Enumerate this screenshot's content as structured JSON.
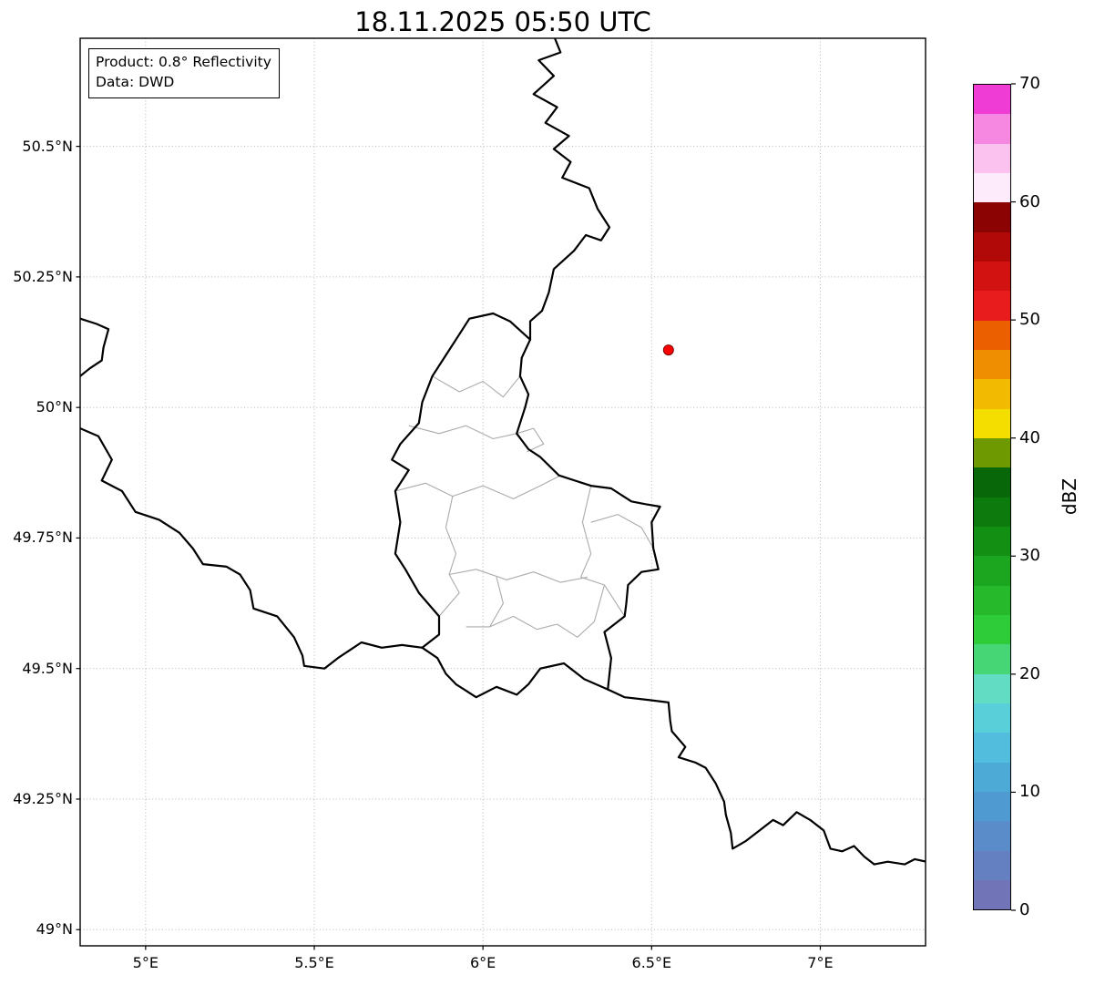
{
  "title": "18.11.2025 05:50 UTC",
  "info_box": {
    "line1": "Product: 0.8° Reflectivity",
    "line2": "Data: DWD"
  },
  "chart_data": {
    "type": "map",
    "title": "18.11.2025 05:50 UTC",
    "product": "0.8° Reflectivity",
    "data_source": "DWD",
    "grid": {
      "visible": true,
      "style": "dotted"
    },
    "x_axis": {
      "range": [
        4.806,
        7.312
      ],
      "ticks": [
        5,
        5.5,
        6,
        6.5,
        7
      ],
      "tick_labels": [
        "5°E",
        "5.5°E",
        "6°E",
        "6.5°E",
        "7°E"
      ]
    },
    "y_axis": {
      "range": [
        48.969,
        50.707
      ],
      "ticks": [
        49,
        49.25,
        49.5,
        49.75,
        50,
        50.25,
        50.5
      ],
      "tick_labels": [
        "49°N",
        "49.25°N",
        "49.5°N",
        "49.75°N",
        "50°N",
        "50.25°N",
        "50.5°N"
      ]
    },
    "colorbar": {
      "label": "dBZ",
      "range": [
        0,
        70
      ],
      "ticks": [
        0,
        10,
        20,
        30,
        40,
        50,
        60,
        70
      ],
      "tick_labels": [
        "0",
        "10",
        "20",
        "30",
        "40",
        "50",
        "60",
        "70"
      ],
      "segment_step": 2.5,
      "colors_bottom_to_top": [
        "#7274b8",
        "#6580c0",
        "#598cc8",
        "#4f9ad0",
        "#4daad7",
        "#52bddc",
        "#59d0d9",
        "#62dcc3",
        "#46d675",
        "#2fcc39",
        "#26b92b",
        "#1ca51f",
        "#139014",
        "#0c7a0d",
        "#086708",
        "#6f9900",
        "#f3de00",
        "#f2ba00",
        "#ef8e00",
        "#eb5f00",
        "#e81c1c",
        "#d21111",
        "#b10808",
        "#8b0303",
        "#fdeafa",
        "#fbc2f0",
        "#f788e2",
        "#ee3cd4"
      ]
    },
    "radar_marker": {
      "lon": 6.55,
      "lat": 50.11,
      "color": "#ff0000",
      "edge_color": "#7a0000"
    },
    "borders": {
      "country_color": "#000000",
      "district_color": "#ababab",
      "country": [
        [
          [
            6.205,
            50.72
          ],
          [
            6.23,
            50.68
          ],
          [
            6.165,
            50.665
          ],
          [
            6.21,
            50.635
          ],
          [
            6.15,
            50.6
          ],
          [
            6.22,
            50.575
          ],
          [
            6.185,
            50.545
          ],
          [
            6.255,
            50.52
          ],
          [
            6.21,
            50.495
          ],
          [
            6.26,
            50.47
          ],
          [
            6.235,
            50.44
          ],
          [
            6.315,
            50.42
          ],
          [
            6.34,
            50.38
          ],
          [
            6.375,
            50.345
          ],
          [
            6.35,
            50.32
          ],
          [
            6.305,
            50.33
          ],
          [
            6.27,
            50.3
          ],
          [
            6.21,
            50.265
          ],
          [
            6.195,
            50.22
          ],
          [
            6.175,
            50.185
          ],
          [
            6.14,
            50.165
          ],
          [
            6.14,
            50.13
          ]
        ],
        [
          [
            6.14,
            50.13
          ],
          [
            6.115,
            50.095
          ],
          [
            6.11,
            50.06
          ],
          [
            6.135,
            50.025
          ],
          [
            6.125,
            50.0
          ],
          [
            6.1,
            49.95
          ],
          [
            6.135,
            49.92
          ],
          [
            6.17,
            49.905
          ],
          [
            6.225,
            49.87
          ],
          [
            6.32,
            49.85
          ],
          [
            6.38,
            49.845
          ],
          [
            6.44,
            49.82
          ],
          [
            6.48,
            49.815
          ],
          [
            6.525,
            49.81
          ],
          [
            6.5,
            49.78
          ],
          [
            6.505,
            49.73
          ],
          [
            6.52,
            49.69
          ],
          [
            6.47,
            49.685
          ],
          [
            6.43,
            49.66
          ],
          [
            6.425,
            49.625
          ],
          [
            6.42,
            49.6
          ],
          [
            6.36,
            49.57
          ],
          [
            6.38,
            49.52
          ],
          [
            6.37,
            49.46
          ],
          [
            6.3,
            49.48
          ],
          [
            6.24,
            49.51
          ],
          [
            6.17,
            49.5
          ],
          [
            6.135,
            49.47
          ],
          [
            6.1,
            49.45
          ],
          [
            6.04,
            49.465
          ],
          [
            5.98,
            49.445
          ],
          [
            5.92,
            49.47
          ],
          [
            5.89,
            49.49
          ],
          [
            5.865,
            49.52
          ],
          [
            5.82,
            49.54
          ],
          [
            5.87,
            49.565
          ],
          [
            5.87,
            49.6
          ],
          [
            5.81,
            49.645
          ],
          [
            5.77,
            49.69
          ],
          [
            5.74,
            49.72
          ],
          [
            5.755,
            49.78
          ],
          [
            5.74,
            49.84
          ],
          [
            5.78,
            49.88
          ],
          [
            5.73,
            49.9
          ],
          [
            5.755,
            49.93
          ],
          [
            5.81,
            49.97
          ],
          [
            5.82,
            50.01
          ],
          [
            5.85,
            50.06
          ],
          [
            5.89,
            50.1
          ],
          [
            5.96,
            50.17
          ],
          [
            6.03,
            50.18
          ],
          [
            6.08,
            50.165
          ],
          [
            6.14,
            50.13
          ]
        ],
        [
          [
            4.806,
            49.96
          ],
          [
            4.86,
            49.945
          ],
          [
            4.9,
            49.9
          ],
          [
            4.87,
            49.86
          ],
          [
            4.93,
            49.84
          ],
          [
            4.97,
            49.8
          ],
          [
            5.04,
            49.785
          ],
          [
            5.1,
            49.76
          ],
          [
            5.14,
            49.73
          ],
          [
            5.17,
            49.7
          ],
          [
            5.24,
            49.695
          ],
          [
            5.28,
            49.68
          ],
          [
            5.31,
            49.65
          ],
          [
            5.32,
            49.615
          ],
          [
            5.39,
            49.6
          ],
          [
            5.44,
            49.56
          ],
          [
            5.465,
            49.525
          ],
          [
            5.47,
            49.505
          ],
          [
            5.53,
            49.5
          ],
          [
            5.57,
            49.52
          ],
          [
            5.64,
            49.55
          ],
          [
            5.7,
            49.54
          ],
          [
            5.76,
            49.545
          ],
          [
            5.82,
            49.54
          ]
        ],
        [
          [
            4.806,
            50.17
          ],
          [
            4.855,
            50.16
          ],
          [
            4.89,
            50.15
          ],
          [
            4.875,
            50.115
          ],
          [
            4.87,
            50.09
          ],
          [
            4.835,
            50.075
          ],
          [
            4.806,
            50.06
          ]
        ],
        [
          [
            6.37,
            49.46
          ],
          [
            6.42,
            49.445
          ],
          [
            6.49,
            49.44
          ],
          [
            6.55,
            49.435
          ],
          [
            6.555,
            49.4
          ],
          [
            6.56,
            49.38
          ],
          [
            6.6,
            49.35
          ],
          [
            6.58,
            49.33
          ],
          [
            6.63,
            49.32
          ],
          [
            6.66,
            49.31
          ],
          [
            6.69,
            49.28
          ],
          [
            6.715,
            49.245
          ],
          [
            6.72,
            49.22
          ],
          [
            6.735,
            49.185
          ],
          [
            6.74,
            49.155
          ],
          [
            6.78,
            49.17
          ],
          [
            6.82,
            49.19
          ],
          [
            6.86,
            49.21
          ],
          [
            6.89,
            49.2
          ],
          [
            6.93,
            49.225
          ],
          [
            6.97,
            49.21
          ],
          [
            7.01,
            49.19
          ],
          [
            7.03,
            49.155
          ],
          [
            7.065,
            49.15
          ],
          [
            7.1,
            49.16
          ],
          [
            7.13,
            49.14
          ],
          [
            7.16,
            49.125
          ],
          [
            7.2,
            49.13
          ],
          [
            7.25,
            49.125
          ],
          [
            7.28,
            49.135
          ],
          [
            7.315,
            49.13
          ]
        ]
      ],
      "districts": [
        [
          [
            5.85,
            50.06
          ],
          [
            5.93,
            50.03
          ],
          [
            6.0,
            50.05
          ],
          [
            6.06,
            50.02
          ],
          [
            6.11,
            50.06
          ]
        ],
        [
          [
            5.78,
            49.965
          ],
          [
            5.87,
            49.95
          ],
          [
            5.95,
            49.965
          ],
          [
            6.03,
            49.94
          ],
          [
            6.1,
            49.95
          ]
        ],
        [
          [
            6.1,
            49.95
          ],
          [
            6.15,
            49.96
          ],
          [
            6.18,
            49.93
          ],
          [
            6.13,
            49.915
          ]
        ],
        [
          [
            5.74,
            49.84
          ],
          [
            5.83,
            49.855
          ],
          [
            5.91,
            49.83
          ],
          [
            6.0,
            49.85
          ],
          [
            6.09,
            49.825
          ],
          [
            6.17,
            49.85
          ],
          [
            6.23,
            49.87
          ]
        ],
        [
          [
            5.91,
            49.83
          ],
          [
            5.89,
            49.77
          ],
          [
            5.92,
            49.72
          ],
          [
            5.9,
            49.68
          ]
        ],
        [
          [
            5.87,
            49.6
          ],
          [
            5.93,
            49.645
          ],
          [
            5.9,
            49.68
          ],
          [
            5.98,
            49.69
          ],
          [
            6.07,
            49.67
          ],
          [
            6.15,
            49.685
          ],
          [
            6.23,
            49.665
          ],
          [
            6.31,
            49.675
          ]
        ],
        [
          [
            6.04,
            49.675
          ],
          [
            6.06,
            49.625
          ],
          [
            6.02,
            49.58
          ]
        ],
        [
          [
            5.95,
            49.58
          ],
          [
            6.02,
            49.58
          ],
          [
            6.09,
            49.6
          ],
          [
            6.16,
            49.575
          ],
          [
            6.22,
            49.585
          ]
        ],
        [
          [
            6.32,
            49.85
          ],
          [
            6.295,
            49.78
          ],
          [
            6.32,
            49.72
          ],
          [
            6.29,
            49.675
          ]
        ],
        [
          [
            6.32,
            49.78
          ],
          [
            6.4,
            49.795
          ],
          [
            6.47,
            49.77
          ],
          [
            6.505,
            49.73
          ]
        ],
        [
          [
            6.29,
            49.675
          ],
          [
            6.36,
            49.66
          ],
          [
            6.42,
            49.6
          ]
        ],
        [
          [
            6.22,
            49.585
          ],
          [
            6.28,
            49.56
          ],
          [
            6.33,
            49.59
          ],
          [
            6.36,
            49.66
          ]
        ]
      ]
    }
  }
}
